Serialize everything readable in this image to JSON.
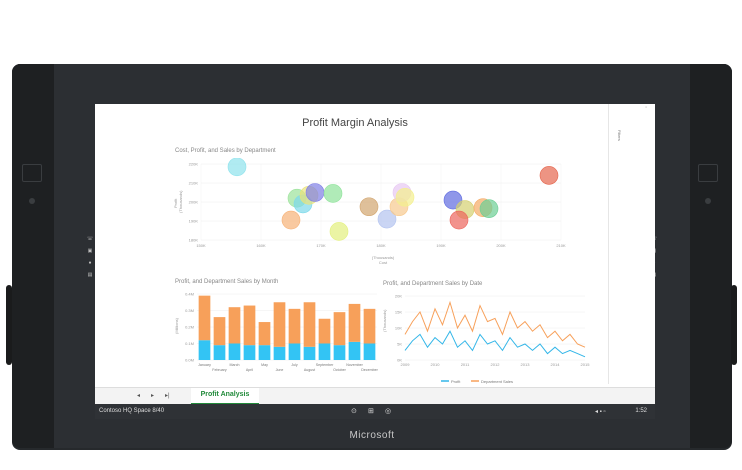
{
  "device": {
    "brand": "Microsoft"
  },
  "window": {
    "title": "Profit Margin Analysis",
    "filters_label": "Filters",
    "close_glyph": "×"
  },
  "tabs": {
    "page_tab": "Profit Analysis",
    "prev": "◂",
    "next": "▸",
    "last": "▸|"
  },
  "taskbar": {
    "location": "Contoso HQ Space 8/40",
    "time": "1:52"
  },
  "charts": {
    "scatter": {
      "title": "Cost, Profit, and Sales by Department",
      "ylabel": "Profit",
      "ylabel2": "(Thousands)",
      "xlabel": "Cost",
      "xlabel2": "(Thousands)",
      "y_ticks": [
        "220K",
        "210K",
        "200K",
        "190K",
        "180K"
      ],
      "x_ticks": [
        "150K",
        "160K",
        "170K",
        "180K",
        "190K",
        "200K",
        "210K"
      ]
    },
    "bars": {
      "title": "Profit, and Department Sales by Month",
      "ylabel": "(Millions)",
      "y_ticks": [
        "0.4M",
        "0.3M",
        "0.2M",
        "0.1M",
        "0.0M"
      ],
      "months_top": [
        "January",
        "March",
        "May",
        "July",
        "September",
        "November"
      ],
      "months_bottom": [
        "February",
        "April",
        "June",
        "August",
        "October",
        "December"
      ]
    },
    "lines": {
      "title": "Profit, and Department Sales by Date",
      "ylabel": "(Thousands)",
      "y_ticks": [
        "20K",
        "15K",
        "10K",
        "5K",
        "0K"
      ],
      "x_ticks": [
        "2009",
        "2010",
        "2011",
        "2012",
        "2013",
        "2014",
        "2015"
      ],
      "legend_profit": "Profit",
      "legend_sales": "Department Sales"
    }
  },
  "chart_data": [
    {
      "type": "scatter",
      "title": "Cost, Profit, and Sales by Department",
      "xlabel": "Cost (Thousands)",
      "ylabel": "Profit (Thousands)",
      "xlim": [
        150,
        210
      ],
      "ylim": [
        180,
        220
      ],
      "points": [
        {
          "x": 156,
          "y": 218.5,
          "color": "#8fe3ec"
        },
        {
          "x": 166,
          "y": 202,
          "color": "#9be39a"
        },
        {
          "x": 167,
          "y": 199,
          "color": "#7ed9ea"
        },
        {
          "x": 165,
          "y": 190.5,
          "color": "#f6b277"
        },
        {
          "x": 168,
          "y": 203.5,
          "color": "#e9e37a"
        },
        {
          "x": 169,
          "y": 205,
          "color": "#7f7fe6"
        },
        {
          "x": 172,
          "y": 204.5,
          "color": "#8ee39a"
        },
        {
          "x": 173,
          "y": 184.5,
          "color": "#e3f07d"
        },
        {
          "x": 178,
          "y": 197.5,
          "color": "#d2a56f"
        },
        {
          "x": 181,
          "y": 191,
          "color": "#b3c3ef"
        },
        {
          "x": 183,
          "y": 197.5,
          "color": "#f7c98e"
        },
        {
          "x": 183.5,
          "y": 205,
          "color": "#e7c8f2"
        },
        {
          "x": 184,
          "y": 202.5,
          "color": "#f3f08d"
        },
        {
          "x": 192,
          "y": 201,
          "color": "#5f6be0"
        },
        {
          "x": 194,
          "y": 196,
          "color": "#d4d070"
        },
        {
          "x": 193,
          "y": 190.5,
          "color": "#ec655c"
        },
        {
          "x": 197,
          "y": 197,
          "color": "#f5ab65"
        },
        {
          "x": 198,
          "y": 196.5,
          "color": "#6ccf94"
        },
        {
          "x": 208,
          "y": 214,
          "color": "#e5664e"
        }
      ]
    },
    {
      "type": "bar",
      "title": "Profit, and Department Sales by Month",
      "ylabel": "(Millions)",
      "ylim": [
        0,
        0.4
      ],
      "categories": [
        "January",
        "February",
        "March",
        "April",
        "May",
        "June",
        "July",
        "August",
        "September",
        "October",
        "November",
        "December"
      ],
      "series": [
        {
          "name": "Profit",
          "values": [
            0.12,
            0.09,
            0.1,
            0.09,
            0.09,
            0.08,
            0.1,
            0.08,
            0.1,
            0.09,
            0.11,
            0.1
          ],
          "color": "#33c4f4"
        },
        {
          "name": "Department Sales",
          "values": [
            0.27,
            0.17,
            0.22,
            0.24,
            0.14,
            0.27,
            0.21,
            0.27,
            0.15,
            0.2,
            0.23,
            0.21
          ],
          "color": "#f7a05a"
        }
      ]
    },
    {
      "type": "line",
      "title": "Profit, and Department Sales by Date",
      "ylabel": "(Thousands)",
      "ylim": [
        0,
        20
      ],
      "x": [
        2009,
        2009.25,
        2009.5,
        2009.75,
        2010,
        2010.25,
        2010.5,
        2010.75,
        2011,
        2011.25,
        2011.5,
        2011.75,
        2012,
        2012.25,
        2012.5,
        2012.75,
        2013,
        2013.25,
        2013.5,
        2013.75,
        2014,
        2014.25,
        2014.5,
        2014.75,
        2015
      ],
      "series": [
        {
          "name": "Department Sales",
          "color": "#f7a05a",
          "values": [
            8,
            12,
            15,
            9,
            16,
            11,
            18,
            10,
            14,
            9,
            17,
            12,
            13,
            8,
            15,
            10,
            12,
            9,
            11,
            7,
            9,
            6,
            8,
            5,
            4
          ]
        },
        {
          "name": "Profit",
          "color": "#33b6e8",
          "values": [
            3,
            6,
            8,
            4,
            7,
            5,
            9,
            4,
            6,
            3,
            8,
            5,
            6,
            3,
            7,
            4,
            5,
            3,
            5,
            2,
            4,
            2,
            3,
            2,
            1
          ]
        }
      ]
    }
  ]
}
